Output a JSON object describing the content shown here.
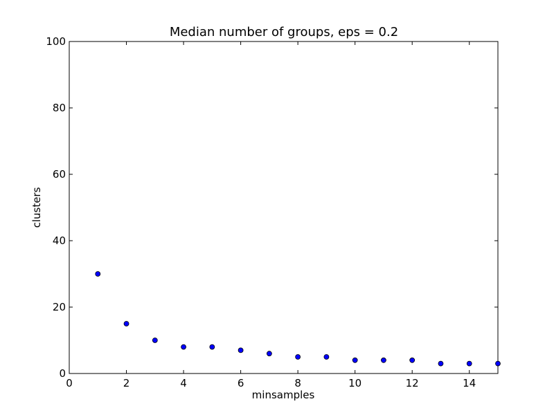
{
  "chart_data": {
    "type": "scatter",
    "title": "Median number of groups, eps = 0.2",
    "xlabel": "minsamples",
    "ylabel": "clusters",
    "xlim": [
      0,
      15
    ],
    "ylim": [
      0,
      100
    ],
    "xticks": [
      0,
      2,
      4,
      6,
      8,
      10,
      12,
      14
    ],
    "yticks": [
      0,
      20,
      40,
      60,
      80,
      100
    ],
    "grid": false,
    "legend": "none",
    "marker_color": "#0000ff",
    "marker_edge_color": "#000000",
    "series": [
      {
        "x": [
          1,
          2,
          3,
          4,
          5,
          6,
          7,
          8,
          9,
          10,
          11,
          12,
          13,
          14,
          15
        ],
        "y": [
          30,
          15,
          10,
          8,
          8,
          7,
          6,
          5,
          5,
          4,
          4,
          4,
          3,
          3,
          3
        ]
      }
    ]
  }
}
